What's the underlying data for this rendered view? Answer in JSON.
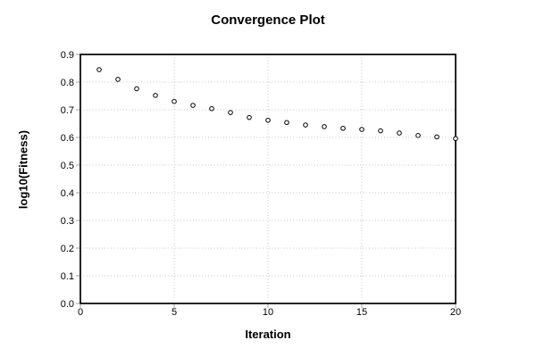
{
  "title": "Convergence Plot",
  "axes": {
    "x_label": "Iteration",
    "y_label": "log10(Fitness)"
  },
  "colors": {
    "background": "#ffffff",
    "axis_border": "#000000",
    "grid": "#c6c6c6",
    "tick": "#a0a0a0",
    "marker_stroke": "#000000",
    "marker_fill": "#ffffff",
    "text": "#000000"
  },
  "chart_data": {
    "type": "scatter",
    "title": "Convergence Plot",
    "xlabel": "Iteration",
    "ylabel": "log10(Fitness)",
    "xlim": [
      0,
      20
    ],
    "ylim": [
      0.0,
      0.9
    ],
    "x_ticks": [
      0,
      5,
      10,
      15,
      20
    ],
    "x_tick_labels": [
      "0",
      "5",
      "10",
      "15",
      "20"
    ],
    "y_ticks": [
      0.0,
      0.1,
      0.2,
      0.3,
      0.4,
      0.5,
      0.6,
      0.7,
      0.8,
      0.9
    ],
    "y_tick_labels": [
      "0.0",
      "0.1",
      "0.2",
      "0.3",
      "0.4",
      "0.5",
      "0.6",
      "0.7",
      "0.8",
      "0.9"
    ],
    "grid": "dotted",
    "legend": "none",
    "marker": "open-circle",
    "x": [
      1,
      2,
      3,
      4,
      5,
      6,
      7,
      8,
      9,
      10,
      11,
      12,
      13,
      14,
      15,
      16,
      17,
      18,
      19,
      20
    ],
    "y": [
      0.845,
      0.81,
      0.776,
      0.752,
      0.73,
      0.716,
      0.704,
      0.69,
      0.672,
      0.662,
      0.654,
      0.645,
      0.639,
      0.633,
      0.629,
      0.624,
      0.616,
      0.607,
      0.602,
      0.596
    ]
  }
}
